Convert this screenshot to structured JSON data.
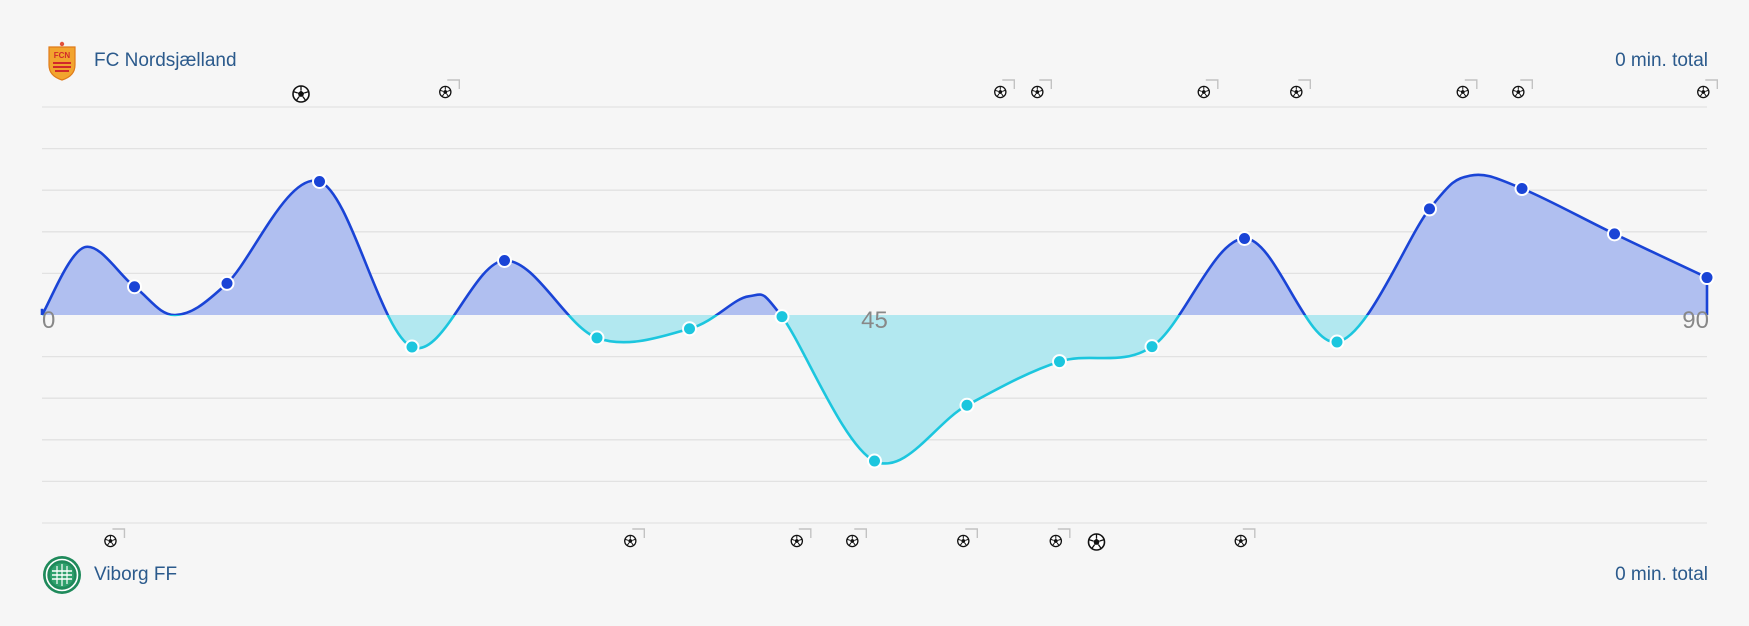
{
  "home_team": {
    "name": "FC Nordsjælland",
    "total": "0 min. total",
    "logo_icon": "fcn-crest-icon",
    "logo_text": "FCN",
    "color": "#f0a030"
  },
  "away_team": {
    "name": "Viborg FF",
    "total": "0 min. total",
    "logo_icon": "viborg-crest-icon",
    "color": "#1f8a5b"
  },
  "chart_data": {
    "type": "area",
    "x_ticks": [
      {
        "x": 0,
        "label": "0"
      },
      {
        "x": 45,
        "label": "45"
      },
      {
        "x": 90,
        "label": "90"
      }
    ],
    "xlim": [
      0,
      90
    ],
    "ylim": [
      -5,
      5
    ],
    "grid": true,
    "colors": {
      "home_line": "#1a44d6",
      "home_fill": "#b0bff0",
      "away_line": "#1cc6de",
      "away_fill": "#b2e8f0",
      "gridline": "#e2e2e2"
    },
    "points": [
      {
        "x": 0,
        "y": 0
      },
      {
        "x": 5,
        "y": 0.68
      },
      {
        "x": 10,
        "y": 0.76
      },
      {
        "x": 15,
        "y": 3.21
      },
      {
        "x": 20,
        "y": -0.77
      },
      {
        "x": 25,
        "y": 1.31
      },
      {
        "x": 30,
        "y": -0.55
      },
      {
        "x": 35,
        "y": -0.33
      },
      {
        "x": 40,
        "y": -0.04
      },
      {
        "x": 45,
        "y": -3.51
      },
      {
        "x": 50,
        "y": -2.17
      },
      {
        "x": 55,
        "y": -1.12
      },
      {
        "x": 60,
        "y": -0.76
      },
      {
        "x": 65,
        "y": 1.84
      },
      {
        "x": 70,
        "y": -0.65
      },
      {
        "x": 75,
        "y": 2.55
      },
      {
        "x": 80,
        "y": 3.04
      },
      {
        "x": 85,
        "y": 1.95
      },
      {
        "x": 90,
        "y": 0.9
      }
    ],
    "curve_points": [
      {
        "x": 0,
        "y": 0
      },
      {
        "x": 2.3,
        "y": 1.63
      },
      {
        "x": 5,
        "y": 0.68
      },
      {
        "x": 7.2,
        "y": 0
      },
      {
        "x": 10,
        "y": 0.76
      },
      {
        "x": 15,
        "y": 3.21
      },
      {
        "x": 20,
        "y": -0.77
      },
      {
        "x": 25,
        "y": 1.31
      },
      {
        "x": 30,
        "y": -0.55
      },
      {
        "x": 35,
        "y": -0.33
      },
      {
        "x": 38.2,
        "y": 0.45
      },
      {
        "x": 40,
        "y": -0.04
      },
      {
        "x": 45,
        "y": -3.51
      },
      {
        "x": 50,
        "y": -2.17
      },
      {
        "x": 55,
        "y": -1.12
      },
      {
        "x": 60,
        "y": -0.76
      },
      {
        "x": 65,
        "y": 1.84
      },
      {
        "x": 70,
        "y": -0.65
      },
      {
        "x": 75,
        "y": 2.55
      },
      {
        "x": 77.2,
        "y": 3.35
      },
      {
        "x": 80,
        "y": 3.04
      },
      {
        "x": 85,
        "y": 1.95
      },
      {
        "x": 90,
        "y": 0.9
      }
    ],
    "home_events": [
      {
        "minute": 14,
        "type": "goal"
      },
      {
        "minute": 21.8,
        "type": "shot"
      },
      {
        "minute": 51.8,
        "type": "shot"
      },
      {
        "minute": 53.8,
        "type": "shot"
      },
      {
        "minute": 62.8,
        "type": "shot"
      },
      {
        "minute": 67.8,
        "type": "shot"
      },
      {
        "minute": 76.8,
        "type": "shot"
      },
      {
        "minute": 79.8,
        "type": "shot"
      },
      {
        "minute": 89.8,
        "type": "shot"
      }
    ],
    "away_events": [
      {
        "minute": 3.7,
        "type": "shot"
      },
      {
        "minute": 31.8,
        "type": "shot"
      },
      {
        "minute": 40.8,
        "type": "shot"
      },
      {
        "minute": 43.8,
        "type": "shot"
      },
      {
        "minute": 49.8,
        "type": "shot"
      },
      {
        "minute": 54.8,
        "type": "shot"
      },
      {
        "minute": 57,
        "type": "goal"
      },
      {
        "minute": 64.8,
        "type": "shot"
      }
    ]
  }
}
